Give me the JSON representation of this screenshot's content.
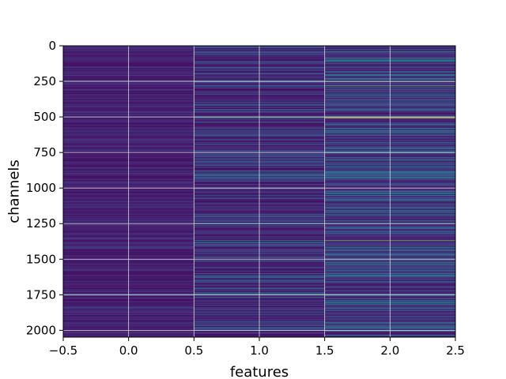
{
  "chart_data": {
    "type": "heatmap",
    "title": "",
    "xlabel": "features",
    "ylabel": "channels",
    "xlim": [
      -0.5,
      2.5
    ],
    "ylim": [
      2048,
      0
    ],
    "grid": true,
    "colormap": "viridis",
    "columns": [
      0,
      1,
      2
    ],
    "rows": 2048,
    "xticks": [
      "−0.5",
      "0.0",
      "0.5",
      "1.0",
      "1.5",
      "2.0",
      "2.5"
    ],
    "yticks": [
      "0",
      "250",
      "500",
      "750",
      "1000",
      "1250",
      "1500",
      "1750",
      "2000"
    ],
    "xtick_values": [
      -0.5,
      0.0,
      0.5,
      1.0,
      1.5,
      2.0,
      2.5
    ],
    "ytick_values": [
      0,
      250,
      500,
      750,
      1000,
      1250,
      1500,
      1750,
      2000
    ],
    "bright_rows": [
      {
        "row": 40,
        "values": [
          0.05,
          0.2,
          0.5
        ]
      },
      {
        "row": 120,
        "values": [
          0.08,
          0.35,
          0.45
        ]
      },
      {
        "row": 280,
        "values": [
          0.06,
          0.3,
          0.75
        ]
      },
      {
        "row": 505,
        "values": [
          0.1,
          0.6,
          1.0
        ]
      },
      {
        "row": 735,
        "values": [
          0.3,
          0.25,
          0.35
        ]
      },
      {
        "row": 920,
        "values": [
          0.05,
          0.4,
          0.55
        ]
      },
      {
        "row": 1050,
        "values": [
          0.06,
          0.35,
          0.4
        ]
      },
      {
        "row": 1370,
        "values": [
          0.08,
          0.55,
          0.8
        ]
      },
      {
        "row": 1745,
        "values": [
          0.35,
          0.5,
          0.55
        ]
      },
      {
        "row": 1980,
        "values": [
          0.06,
          0.3,
          0.5
        ]
      }
    ]
  }
}
